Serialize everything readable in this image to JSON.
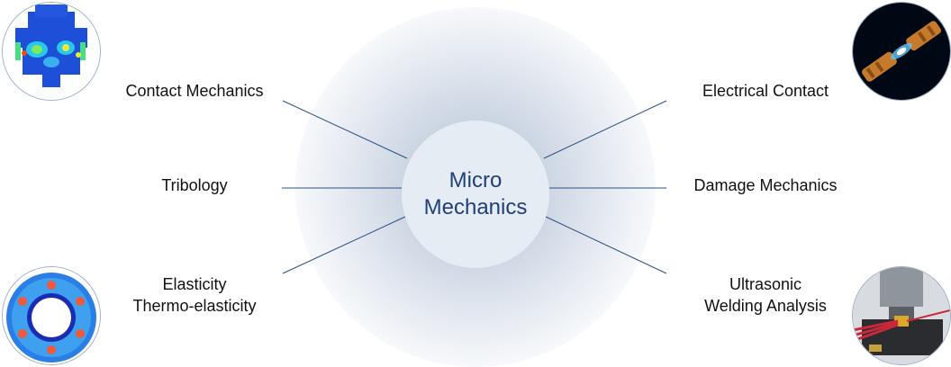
{
  "center": {
    "line1": "Micro",
    "line2": "Mechanics"
  },
  "topics": {
    "contact_mechanics": "Contact Mechanics",
    "tribology": "Tribology",
    "elasticity_line1": "Elasticity",
    "elasticity_line2": "Thermo-elasticity",
    "electrical_contact": "Electrical Contact",
    "damage_mechanics": "Damage Mechanics",
    "ultrasonic_line1": "Ultrasonic",
    "ultrasonic_line2": "Welding Analysis"
  },
  "colors": {
    "center_text": "#1f3f7a",
    "connector_line": "#2d4f86",
    "center_fill": "#e6ecf3"
  },
  "images": {
    "top_left": "fea-contact-stress-render",
    "bottom_left": "thermo-elastic-ring-render",
    "top_right": "electrical-spark-connector-render",
    "bottom_right": "ultrasonic-welding-render"
  }
}
